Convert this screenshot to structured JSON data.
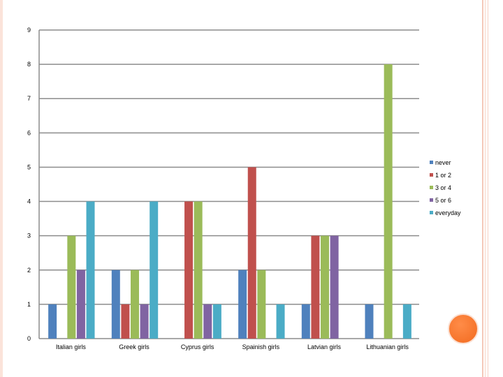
{
  "chart_data": {
    "type": "bar",
    "categories": [
      "Italian girls",
      "Greek girls",
      "Cyprus girls",
      "Spainish girls",
      "Latvian girls",
      "Lithuanian girls"
    ],
    "series": [
      {
        "name": "never",
        "color": "#4f81bd",
        "values": [
          1,
          2,
          0,
          2,
          1,
          1
        ]
      },
      {
        "name": "1 or 2",
        "color": "#c0504d",
        "values": [
          0,
          1,
          4,
          5,
          3,
          0
        ]
      },
      {
        "name": "3 or 4",
        "color": "#9bbb59",
        "values": [
          3,
          2,
          4,
          2,
          3,
          8
        ]
      },
      {
        "name": "5 or 6",
        "color": "#8064a2",
        "values": [
          2,
          1,
          1,
          0,
          3,
          0
        ]
      },
      {
        "name": "everyday",
        "color": "#4bacc6",
        "values": [
          4,
          4,
          1,
          1,
          0,
          1
        ]
      }
    ],
    "yticks": [
      "0",
      "1",
      "2",
      "3",
      "4",
      "5",
      "6",
      "7",
      "8",
      "9"
    ],
    "ylim": [
      0,
      9
    ],
    "grid": true,
    "legend_position": "right"
  },
  "decor": {
    "accent_color": "#f26a1f",
    "border_color": "#f4c8b8"
  }
}
